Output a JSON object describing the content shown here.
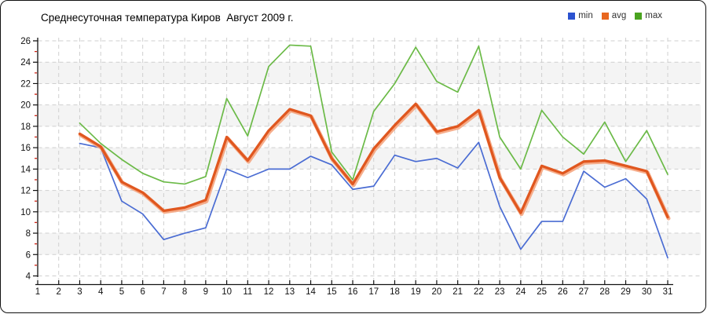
{
  "title": "Среднесуточная температура Киров  Август 2009 г.",
  "legend": {
    "items": [
      {
        "label": "min",
        "color": "#2b52d0"
      },
      {
        "label": "avg",
        "color": "#e8671f"
      },
      {
        "label": "max",
        "color": "#4aa31f"
      }
    ]
  },
  "chart_data": {
    "type": "line",
    "title": "Среднесуточная температура Киров  Август 2009 г.",
    "xlabel": "",
    "ylabel": "",
    "x_axis": {
      "min": 1,
      "max": 31,
      "step": 1
    },
    "y_axis": {
      "min": 4,
      "max": 26,
      "step": 2,
      "minor_step": 1
    },
    "grid": {
      "style": "dashed",
      "color": "#cfcfcf"
    },
    "bands": {
      "fill": "#f4f4f4",
      "ranges": [
        [
          6,
          8
        ],
        [
          10,
          12
        ],
        [
          14,
          16
        ],
        [
          18,
          20
        ],
        [
          22,
          24
        ]
      ]
    },
    "legend_position": "top-right",
    "x": [
      3,
      4,
      5,
      6,
      7,
      8,
      9,
      10,
      11,
      12,
      13,
      14,
      15,
      16,
      17,
      18,
      19,
      20,
      21,
      22,
      23,
      24,
      25,
      26,
      27,
      28,
      29,
      30,
      31
    ],
    "series": [
      {
        "name": "min",
        "color": "#4a6cd3",
        "values": [
          16.4,
          16.0,
          11.0,
          9.8,
          7.4,
          8.0,
          8.5,
          14.0,
          13.2,
          14.0,
          14.0,
          15.2,
          14.4,
          12.1,
          12.4,
          15.3,
          14.7,
          15.0,
          14.1,
          16.5,
          10.5,
          6.5,
          9.1,
          9.1,
          13.8,
          12.3,
          13.1,
          11.2,
          5.7
        ]
      },
      {
        "name": "avg",
        "color": "#e0571f",
        "halo": "#f4a078",
        "values": [
          17.3,
          16.1,
          12.8,
          11.8,
          10.1,
          10.4,
          11.1,
          17.0,
          14.8,
          17.6,
          19.6,
          19.0,
          15.0,
          12.6,
          15.9,
          18.1,
          20.1,
          17.5,
          18.0,
          19.5,
          13.2,
          9.9,
          14.3,
          13.6,
          14.7,
          14.8,
          14.3,
          13.8,
          9.5
        ]
      },
      {
        "name": "max",
        "color": "#6bba47",
        "values": [
          18.3,
          16.4,
          14.9,
          13.6,
          12.8,
          12.6,
          13.3,
          20.6,
          17.1,
          23.6,
          25.6,
          25.5,
          15.6,
          13.0,
          19.4,
          22.0,
          25.4,
          22.2,
          21.2,
          25.5,
          17.0,
          14.0,
          19.5,
          17.0,
          15.4,
          18.4,
          14.7,
          17.6,
          13.5
        ]
      }
    ],
    "axis_minor_tick_color": "#d02314"
  }
}
